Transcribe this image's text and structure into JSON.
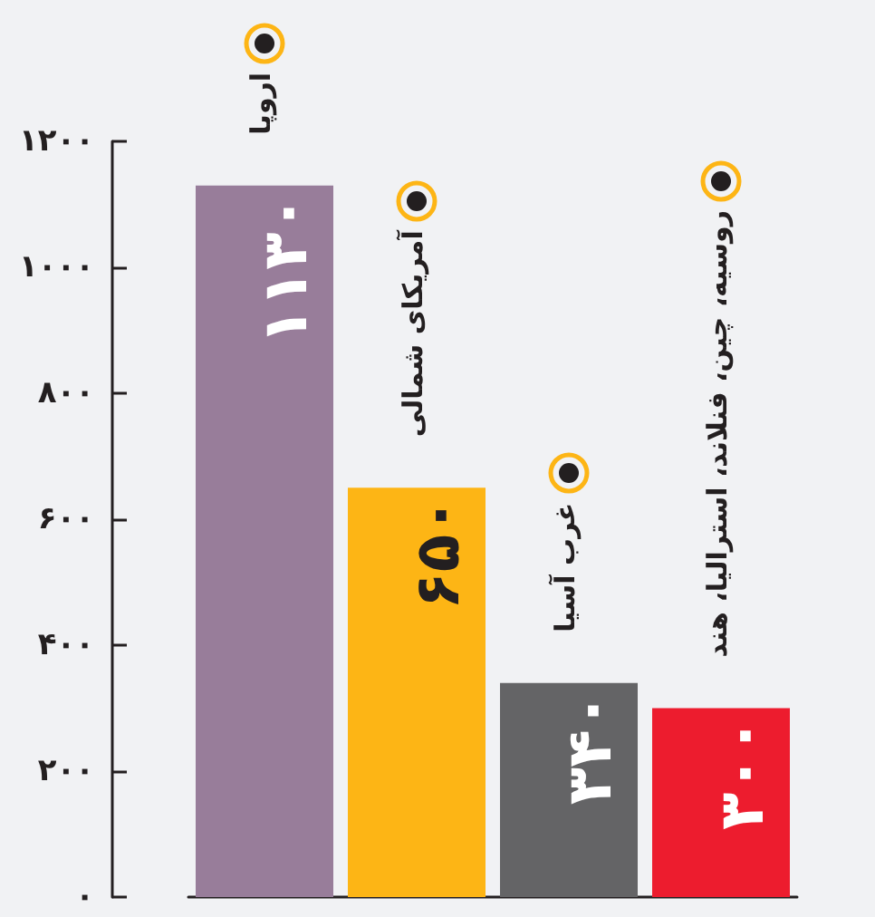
{
  "chart_data": {
    "type": "bar",
    "categories": [
      "اروپا",
      "آمریکای شمالی",
      "غرب آسیا",
      "روسیه، چین، فنلاند، استرالیا، هند"
    ],
    "values": [
      1130,
      650,
      340,
      300
    ],
    "colors": [
      "#987d9a",
      "#fdb515",
      "#646466",
      "#ed1c2e"
    ],
    "value_labels": [
      "۱۱۳۰",
      "۶۵۰",
      "۳۴۰",
      "۳۰۰"
    ],
    "ylim": [
      0,
      1200
    ],
    "yticks": [
      {
        "value": 0,
        "label": "۰"
      },
      {
        "value": 200,
        "label": "۲۰۰"
      },
      {
        "value": 400,
        "label": "۴۰۰"
      },
      {
        "value": 600,
        "label": "۶۰۰"
      },
      {
        "value": 800,
        "label": "۸۰۰"
      },
      {
        "value": 1000,
        "label": "۱۰۰۰"
      },
      {
        "value": 1200,
        "label": "۱۲۰۰"
      }
    ],
    "grid": false
  }
}
